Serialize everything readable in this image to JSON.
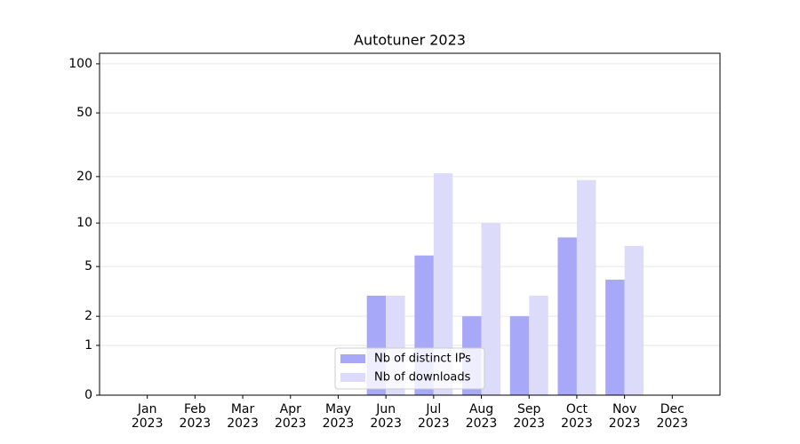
{
  "chart_data": {
    "type": "bar",
    "title": "Autotuner 2023",
    "categories": [
      "Jan 2023",
      "Feb 2023",
      "Mar 2023",
      "Apr 2023",
      "May 2023",
      "Jun 2023",
      "Jul 2023",
      "Aug 2023",
      "Sep 2023",
      "Oct 2023",
      "Nov 2023",
      "Dec 2023"
    ],
    "series": [
      {
        "name": "Nb of distinct IPs",
        "color": "#a8a8f8",
        "values": [
          0,
          0,
          0,
          0,
          0,
          3,
          6,
          2,
          2,
          8,
          4,
          0
        ]
      },
      {
        "name": "Nb of downloads",
        "color": "#dcdcfa",
        "values": [
          0,
          0,
          0,
          0,
          0,
          3,
          21,
          10,
          3,
          19,
          7,
          0
        ]
      }
    ],
    "yscale": "log1p",
    "ylim": [
      0,
      116
    ],
    "yticks": [
      0,
      1,
      2,
      5,
      10,
      20,
      50,
      100
    ],
    "grid": true,
    "legend": "lower center"
  }
}
